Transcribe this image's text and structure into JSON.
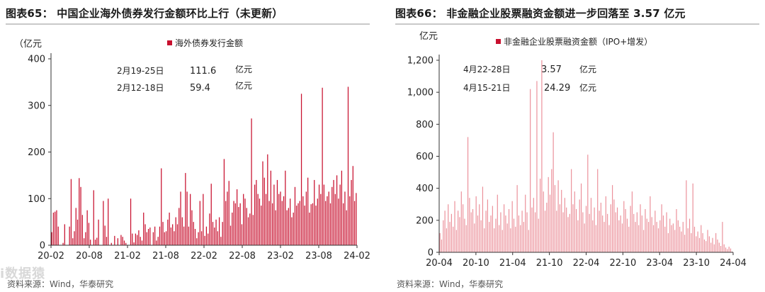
{
  "colors": {
    "series": "#c8102e",
    "series_light": "#e87a86",
    "axis": "#333333",
    "rule": "#c9c9c9"
  },
  "watermark": {
    "text": "i数据猿"
  },
  "chart_data": [
    {
      "type": "bar",
      "figure_title": "图表65：  中国企业海外债券发行金额环比上行（未更新）",
      "unit": "（亿元",
      "legend": "海外债券发行金额",
      "legend_position": "top-center",
      "source": "资料来源：Wind，华泰研究",
      "x_tick_labels": [
        "20-02",
        "20-08",
        "21-02",
        "21-08",
        "22-02",
        "22-08",
        "23-02",
        "23-08",
        "24-02"
      ],
      "ylim": [
        0,
        400
      ],
      "y_ticks": [
        0,
        100,
        200,
        300,
        400
      ],
      "grid": false,
      "annotations": [
        {
          "period": "2月19-25日",
          "value": "111.6",
          "unit": "亿元"
        },
        {
          "period": "2月12-18日",
          "value": "59.4",
          "unit": "亿元"
        }
      ],
      "values": [
        28,
        70,
        72,
        75,
        40,
        0,
        0,
        5,
        45,
        0,
        0,
        40,
        142,
        15,
        30,
        80,
        55,
        144,
        125,
        65,
        15,
        28,
        75,
        48,
        12,
        0,
        118,
        12,
        16,
        55,
        0,
        0,
        95,
        42,
        18,
        100,
        0,
        5,
        0,
        20,
        0,
        15,
        0,
        22,
        18,
        10,
        5,
        0,
        0,
        100,
        25,
        6,
        25,
        22,
        32,
        18,
        10,
        70,
        45,
        28,
        35,
        38,
        0,
        28,
        40,
        10,
        18,
        40,
        165,
        50,
        28,
        30,
        55,
        70,
        38,
        45,
        30,
        60,
        45,
        80,
        115,
        60,
        40,
        155,
        115,
        40,
        110,
        75,
        50,
        35,
        15,
        28,
        95,
        30,
        110,
        20,
        40,
        25,
        68,
        132,
        50,
        38,
        55,
        30,
        60,
        18,
        50,
        185,
        95,
        115,
        138,
        42,
        70,
        95,
        90,
        120,
        82,
        90,
        45,
        110,
        100,
        80,
        60,
        68,
        272,
        65,
        130,
        140,
        110,
        100,
        85,
        180,
        145,
        110,
        195,
        95,
        160,
        90,
        130,
        75,
        140,
        110,
        115,
        95,
        105,
        160,
        75,
        80,
        100,
        60,
        70,
        125,
        85,
        90,
        95,
        325,
        105,
        85,
        115,
        145,
        70,
        88,
        90,
        140,
        85,
        100,
        130,
        110,
        338,
        130,
        95,
        105,
        115,
        90,
        125,
        140,
        110,
        150,
        100,
        130,
        160,
        90,
        115,
        75,
        340,
        105,
        140,
        170,
        95,
        112
      ]
    },
    {
      "type": "bar",
      "figure_title": "图表66：  非金融企业股票融资金额进一步回落至 3.57 亿元",
      "unit": "亿元",
      "legend": "非金融企业股票融资金额（IPO+增发）",
      "legend_position": "top-center",
      "source": "资料来源：Wind，华泰研究",
      "x_tick_labels": [
        "20-04",
        "20-10",
        "21-04",
        "21-10",
        "22-04",
        "22-10",
        "23-04",
        "23-10",
        "24-04"
      ],
      "ylim": [
        0,
        1200
      ],
      "y_ticks": [
        0,
        200,
        400,
        600,
        800,
        "1,000",
        "1,200"
      ],
      "grid": false,
      "annotations": [
        {
          "period": "4月22-28日",
          "value": "3.57",
          "unit": "亿元"
        },
        {
          "period": "4月15-21日",
          "value": "24.29",
          "unit": "亿元"
        }
      ],
      "values": [
        120,
        80,
        200,
        260,
        150,
        300,
        190,
        240,
        160,
        320,
        140,
        260,
        220,
        380,
        300,
        210,
        170,
        720,
        340,
        250,
        270,
        180,
        350,
        230,
        300,
        200,
        410,
        150,
        260,
        330,
        190,
        230,
        290,
        150,
        210,
        360,
        170,
        250,
        140,
        300,
        230,
        180,
        270,
        150,
        320,
        210,
        160,
        420,
        230,
        170,
        260,
        190,
        360,
        250,
        140,
        1020,
        280,
        340,
        250,
        1070,
        210,
        460,
        1210,
        380,
        260,
        310,
        470,
        360,
        520,
        750,
        420,
        260,
        450,
        300,
        390,
        250,
        340,
        280,
        220,
        240,
        520,
        300,
        380,
        270,
        200,
        330,
        430,
        250,
        180,
        290,
        610,
        240,
        340,
        200,
        280,
        170,
        520,
        260,
        310,
        230,
        190,
        350,
        240,
        170,
        300,
        420,
        330,
        250,
        280,
        200,
        230,
        180,
        320,
        270,
        210,
        160,
        290,
        380,
        240,
        190,
        250,
        170,
        300,
        230,
        140,
        270,
        210,
        190,
        350,
        220,
        170,
        260,
        190,
        150,
        200,
        300,
        230,
        160,
        250,
        120,
        210,
        170,
        180,
        140,
        270,
        200,
        160,
        130,
        190,
        110,
        450,
        150,
        210,
        120,
        430,
        160,
        100,
        130,
        90,
        170,
        120,
        80,
        70,
        140,
        100,
        60,
        90,
        50,
        120,
        80,
        60,
        40,
        190,
        50,
        30,
        20,
        35,
        24,
        4
      ]
    }
  ]
}
